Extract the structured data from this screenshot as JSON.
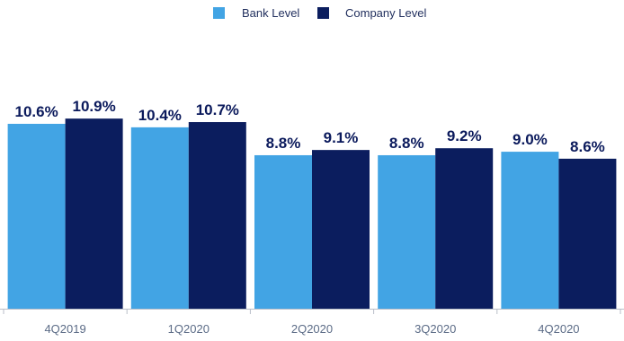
{
  "chart_data": {
    "type": "bar",
    "title": "",
    "xlabel": "",
    "ylabel": "",
    "categories": [
      "4Q2019",
      "1Q2020",
      "2Q2020",
      "3Q2020",
      "4Q2020"
    ],
    "series": [
      {
        "name": "Bank Level",
        "color": "#42a4e4",
        "values": [
          10.6,
          10.4,
          8.8,
          8.8,
          9.0
        ],
        "labels": [
          "10.6%",
          "10.4%",
          "8.8%",
          "8.8%",
          "9.0%"
        ]
      },
      {
        "name": "Company Level",
        "color": "#0b1d5e",
        "values": [
          10.9,
          10.7,
          9.1,
          9.2,
          8.6
        ],
        "labels": [
          "10.9%",
          "10.7%",
          "9.1%",
          "9.2%",
          "8.6%"
        ]
      }
    ],
    "ylim": [
      0,
      17.7
    ],
    "y_axis_visible": false,
    "grid": false,
    "legend_position": "top-center",
    "axis_color": "#b9bec8"
  }
}
